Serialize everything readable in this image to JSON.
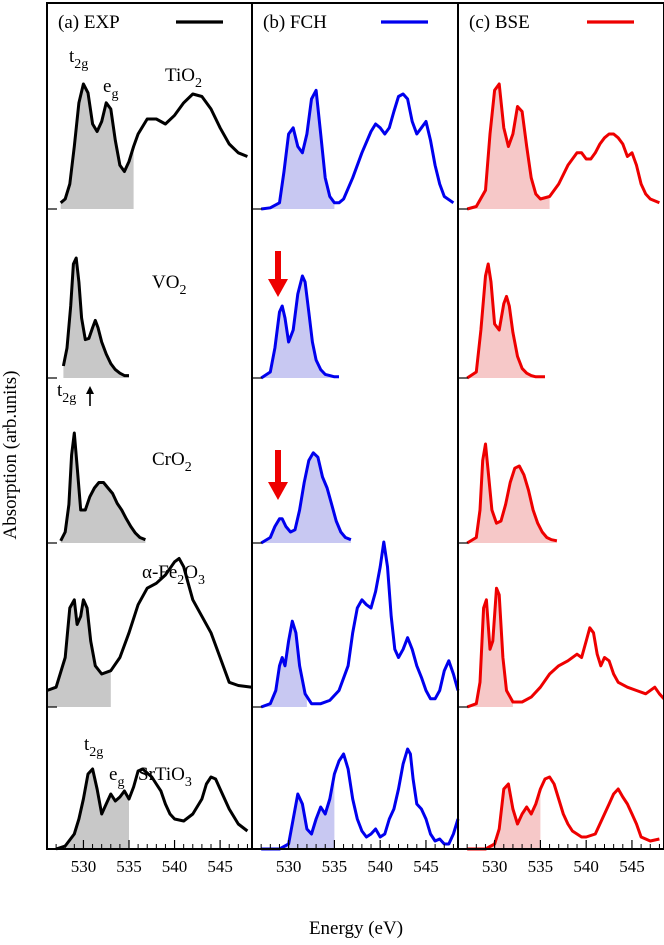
{
  "figure": {
    "ylabel": "Absorption (arb.units)",
    "xlabel": "Energy (eV)"
  },
  "colors": {
    "EXP": "#000000",
    "FCH": "#0000ee",
    "BSE": "#ee0000",
    "EXP_fill": "#c8c8c8",
    "FCH_fill": "#c8c8f2",
    "BSE_fill": "#f6c8c8",
    "arrow": "#ee0000"
  },
  "materials": [
    {
      "name": "TiO",
      "sub": "2",
      "tail": ""
    },
    {
      "name": "VO",
      "sub": "2",
      "tail": ""
    },
    {
      "name": "CrO",
      "sub": "2",
      "tail": ""
    },
    {
      "name": "α-Fe",
      "sub": "2",
      "tail": "O",
      "sub2": "3"
    },
    {
      "name": "SrTiO",
      "sub": "3",
      "tail": ""
    }
  ],
  "annotations": {
    "t2g": {
      "main": "t",
      "sub": "2g"
    },
    "eg": {
      "main": "e",
      "sub": "g"
    }
  },
  "chart_data": {
    "type": "line",
    "xlabel": "Energy (eV)",
    "ylabel": "Absorption (arb.units)",
    "xlim": [
      526.0,
      548.5
    ],
    "x_ticks": [
      530,
      535,
      540,
      545
    ],
    "x_tick_labels": [
      "530",
      "535",
      "540",
      "545"
    ],
    "y_ticks_visible": false,
    "grid": false,
    "legend_placement": "top",
    "panels": [
      {
        "id": "a",
        "label": "(a)",
        "legend": "EXP"
      },
      {
        "id": "b",
        "label": "(b)",
        "legend": "FCH"
      },
      {
        "id": "c",
        "label": "(c)",
        "legend": "BSE"
      }
    ],
    "rows": [
      {
        "material": "TiO2",
        "EXP": {
          "x": [
            527.5,
            528.0,
            528.5,
            529.0,
            529.5,
            530.0,
            530.5,
            531.0,
            531.5,
            532.0,
            532.5,
            533.0,
            533.5,
            534.0,
            534.5,
            535.0,
            535.5,
            536.0,
            537.0,
            538.0,
            539.0,
            540.0,
            541.0,
            542.0,
            543.0,
            544.0,
            545.0,
            546.0,
            547.0,
            548.0
          ],
          "y": [
            0.05,
            0.08,
            0.2,
            0.5,
            0.85,
            1.0,
            0.93,
            0.68,
            0.62,
            0.7,
            0.85,
            0.8,
            0.55,
            0.35,
            0.3,
            0.38,
            0.5,
            0.6,
            0.72,
            0.72,
            0.68,
            0.75,
            0.85,
            0.92,
            0.9,
            0.8,
            0.65,
            0.52,
            0.45,
            0.42
          ],
          "fill_to": 535.5
        },
        "FCH": {
          "x": [
            527.0,
            528.0,
            529.0,
            529.5,
            530.0,
            530.5,
            531.0,
            531.5,
            532.0,
            532.5,
            533.0,
            533.5,
            534.0,
            534.5,
            535.0,
            535.5,
            536.0,
            537.0,
            538.0,
            539.0,
            539.5,
            540.0,
            540.5,
            541.0,
            541.5,
            542.0,
            542.5,
            543.0,
            543.5,
            544.0,
            544.5,
            545.0,
            545.5,
            546.0,
            546.5,
            547.0,
            548.0
          ],
          "y": [
            0.0,
            0.01,
            0.05,
            0.3,
            0.6,
            0.65,
            0.5,
            0.45,
            0.6,
            0.88,
            0.95,
            0.6,
            0.25,
            0.1,
            0.05,
            0.05,
            0.08,
            0.25,
            0.45,
            0.62,
            0.68,
            0.65,
            0.6,
            0.65,
            0.78,
            0.9,
            0.92,
            0.88,
            0.7,
            0.6,
            0.65,
            0.7,
            0.55,
            0.35,
            0.2,
            0.1,
            0.05
          ],
          "fill_to": 535.0
        },
        "BSE": {
          "x": [
            527.0,
            528.0,
            529.0,
            529.5,
            530.0,
            530.5,
            531.0,
            531.5,
            532.0,
            532.5,
            533.0,
            533.5,
            534.0,
            534.5,
            535.0,
            536.0,
            537.0,
            538.0,
            539.0,
            539.5,
            540.0,
            540.5,
            541.0,
            541.5,
            542.0,
            542.5,
            543.0,
            543.5,
            544.0,
            544.5,
            545.0,
            545.5,
            546.0,
            546.5,
            547.0,
            548.0
          ],
          "y": [
            0.0,
            0.02,
            0.15,
            0.6,
            0.95,
            1.0,
            0.65,
            0.5,
            0.6,
            0.82,
            0.78,
            0.5,
            0.25,
            0.12,
            0.08,
            0.1,
            0.2,
            0.35,
            0.45,
            0.45,
            0.4,
            0.4,
            0.45,
            0.52,
            0.57,
            0.6,
            0.6,
            0.57,
            0.52,
            0.42,
            0.45,
            0.35,
            0.2,
            0.12,
            0.08,
            0.05
          ],
          "fill_to": 536.0
        }
      },
      {
        "material": "VO2",
        "EXP": {
          "x": [
            527.8,
            528.2,
            528.6,
            528.9,
            529.2,
            529.5,
            529.8,
            530.2,
            530.6,
            531.0,
            531.3,
            531.6,
            532.0,
            532.5,
            533.0,
            533.5,
            534.0,
            534.5,
            535.0
          ],
          "y": [
            0.1,
            0.25,
            0.6,
            0.95,
            1.0,
            0.8,
            0.5,
            0.32,
            0.33,
            0.42,
            0.48,
            0.42,
            0.3,
            0.2,
            0.12,
            0.07,
            0.04,
            0.02,
            0.02
          ],
          "fill_to": 535.0
        },
        "FCH": {
          "x": [
            527.0,
            528.0,
            528.5,
            529.0,
            529.3,
            529.6,
            530.0,
            530.5,
            531.0,
            531.5,
            531.8,
            532.2,
            532.6,
            533.0,
            533.5,
            534.0,
            534.5,
            535.0,
            535.5
          ],
          "y": [
            0.0,
            0.05,
            0.25,
            0.55,
            0.6,
            0.5,
            0.3,
            0.4,
            0.7,
            0.85,
            0.8,
            0.55,
            0.3,
            0.15,
            0.07,
            0.03,
            0.02,
            0.01,
            0.01
          ],
          "fill_to": 535.5
        },
        "BSE": {
          "x": [
            527.0,
            528.0,
            528.5,
            529.0,
            529.3,
            529.6,
            530.0,
            530.5,
            531.0,
            531.3,
            531.6,
            532.0,
            532.5,
            533.0,
            533.5,
            534.0,
            534.5,
            535.0,
            535.5
          ],
          "y": [
            0.0,
            0.05,
            0.4,
            0.85,
            0.95,
            0.8,
            0.45,
            0.4,
            0.62,
            0.68,
            0.6,
            0.38,
            0.18,
            0.08,
            0.04,
            0.02,
            0.01,
            0.01,
            0.01
          ],
          "fill_to": 535.5
        }
      },
      {
        "material": "CrO2",
        "EXP": {
          "x": [
            527.5,
            528.0,
            528.4,
            528.7,
            529.0,
            529.3,
            529.7,
            530.2,
            530.7,
            531.2,
            531.7,
            532.2,
            532.7,
            533.2,
            533.7,
            534.2,
            534.7,
            535.2,
            535.7,
            536.2,
            536.8
          ],
          "y": [
            0.02,
            0.1,
            0.35,
            0.8,
            1.0,
            0.7,
            0.3,
            0.3,
            0.42,
            0.5,
            0.55,
            0.55,
            0.5,
            0.45,
            0.36,
            0.3,
            0.22,
            0.15,
            0.09,
            0.05,
            0.03
          ],
          "fill_to": 536.8
        },
        "FCH": {
          "x": [
            527.0,
            528.0,
            528.5,
            529.0,
            529.3,
            529.7,
            530.2,
            530.7,
            531.2,
            531.7,
            532.2,
            532.7,
            533.2,
            533.7,
            534.2,
            534.7,
            535.2,
            535.7,
            536.2,
            536.8
          ],
          "y": [
            0.0,
            0.05,
            0.15,
            0.22,
            0.22,
            0.15,
            0.1,
            0.12,
            0.3,
            0.55,
            0.75,
            0.82,
            0.78,
            0.6,
            0.5,
            0.35,
            0.2,
            0.1,
            0.05,
            0.03
          ],
          "fill_to": 536.8
        },
        "BSE": {
          "x": [
            527.0,
            528.0,
            528.4,
            528.7,
            529.0,
            529.3,
            529.7,
            530.2,
            530.7,
            531.2,
            531.7,
            532.2,
            532.7,
            533.2,
            533.7,
            534.2,
            534.7,
            535.2,
            535.7,
            536.2,
            536.8
          ],
          "y": [
            0.0,
            0.05,
            0.3,
            0.75,
            0.9,
            0.65,
            0.3,
            0.18,
            0.2,
            0.35,
            0.55,
            0.68,
            0.7,
            0.62,
            0.48,
            0.3,
            0.18,
            0.1,
            0.05,
            0.03,
            0.02
          ],
          "fill_to": 536.8
        }
      },
      {
        "material": "α-Fe2O3",
        "EXP": {
          "x": [
            526.0,
            527.0,
            528.0,
            528.5,
            529.0,
            529.3,
            529.7,
            530.0,
            530.4,
            530.8,
            531.3,
            532.0,
            533.0,
            534.0,
            535.0,
            536.0,
            537.0,
            538.0,
            539.0,
            540.0,
            540.5,
            541.0,
            541.5,
            542.0,
            543.0,
            544.0,
            545.0,
            546.0,
            547.0,
            548.5
          ],
          "y": [
            0.1,
            0.12,
            0.3,
            0.6,
            0.65,
            0.5,
            0.55,
            0.65,
            0.6,
            0.4,
            0.25,
            0.2,
            0.22,
            0.3,
            0.45,
            0.62,
            0.72,
            0.75,
            0.8,
            0.88,
            0.9,
            0.85,
            0.75,
            0.65,
            0.55,
            0.45,
            0.3,
            0.15,
            0.13,
            0.12
          ],
          "fill_to": 533.0
        },
        "FCH": {
          "x": [
            527.0,
            528.0,
            528.6,
            529.0,
            529.3,
            529.6,
            530.0,
            530.4,
            530.8,
            531.2,
            531.8,
            532.5,
            533.5,
            534.5,
            535.5,
            536.5,
            537.0,
            537.5,
            538.0,
            538.5,
            539.0,
            539.5,
            540.0,
            540.4,
            540.8,
            541.2,
            541.6,
            542.0,
            542.5,
            543.0,
            543.5,
            544.0,
            544.5,
            545.0,
            545.5,
            546.0,
            546.5,
            547.0,
            547.5,
            548.0,
            548.5
          ],
          "y": [
            0.0,
            0.02,
            0.1,
            0.25,
            0.3,
            0.25,
            0.4,
            0.52,
            0.45,
            0.25,
            0.08,
            0.02,
            0.02,
            0.04,
            0.1,
            0.25,
            0.45,
            0.6,
            0.65,
            0.62,
            0.6,
            0.7,
            0.85,
            1.0,
            0.85,
            0.55,
            0.35,
            0.3,
            0.35,
            0.42,
            0.35,
            0.25,
            0.18,
            0.1,
            0.05,
            0.05,
            0.1,
            0.22,
            0.28,
            0.2,
            0.1
          ],
          "fill_to": 532.0
        },
        "BSE": {
          "x": [
            527.0,
            528.0,
            528.4,
            528.8,
            529.1,
            529.5,
            529.8,
            530.2,
            530.5,
            530.9,
            531.3,
            532.0,
            533.0,
            534.0,
            535.0,
            536.0,
            537.0,
            538.0,
            539.0,
            539.5,
            540.0,
            540.4,
            540.8,
            541.2,
            541.6,
            542.0,
            542.5,
            543.0,
            543.5,
            544.5,
            545.5,
            546.5,
            547.5,
            548.0,
            548.5
          ],
          "y": [
            0.0,
            0.02,
            0.15,
            0.6,
            0.65,
            0.35,
            0.4,
            0.72,
            0.68,
            0.3,
            0.1,
            0.03,
            0.03,
            0.06,
            0.12,
            0.2,
            0.25,
            0.28,
            0.32,
            0.3,
            0.4,
            0.48,
            0.45,
            0.32,
            0.25,
            0.3,
            0.28,
            0.2,
            0.15,
            0.12,
            0.1,
            0.08,
            0.12,
            0.08,
            0.05
          ],
          "fill_to": 532.0
        }
      },
      {
        "material": "SrTiO3",
        "EXP": {
          "x": [
            527.0,
            528.0,
            529.0,
            529.5,
            530.0,
            530.5,
            531.0,
            531.5,
            532.0,
            532.5,
            533.0,
            533.5,
            534.0,
            534.5,
            535.0,
            535.5,
            536.0,
            536.5,
            537.0,
            537.5,
            538.0,
            538.5,
            539.0,
            539.5,
            540.0,
            541.0,
            542.0,
            543.0,
            543.5,
            544.0,
            544.5,
            545.0,
            546.0,
            547.0,
            548.0
          ],
          "y": [
            0.0,
            0.03,
            0.15,
            0.3,
            0.5,
            0.75,
            0.8,
            0.6,
            0.35,
            0.45,
            0.55,
            0.48,
            0.52,
            0.58,
            0.5,
            0.62,
            0.78,
            0.8,
            0.76,
            0.72,
            0.65,
            0.58,
            0.45,
            0.35,
            0.3,
            0.28,
            0.35,
            0.5,
            0.65,
            0.72,
            0.7,
            0.6,
            0.4,
            0.25,
            0.18
          ],
          "fill_to": 535.0
        },
        "FCH": {
          "x": [
            527.0,
            529.0,
            530.0,
            530.5,
            531.0,
            531.5,
            532.0,
            532.5,
            533.0,
            533.5,
            534.0,
            534.5,
            535.0,
            535.5,
            536.0,
            536.5,
            537.0,
            537.5,
            538.0,
            538.5,
            539.0,
            539.5,
            540.0,
            540.5,
            541.0,
            541.5,
            542.0,
            542.5,
            543.0,
            543.3,
            543.6,
            544.0,
            544.5,
            545.0,
            545.5,
            546.0,
            546.5,
            547.0,
            547.5,
            548.0,
            548.5
          ],
          "y": [
            0.0,
            0.0,
            0.05,
            0.3,
            0.55,
            0.45,
            0.2,
            0.15,
            0.3,
            0.42,
            0.35,
            0.5,
            0.75,
            0.88,
            0.95,
            0.8,
            0.5,
            0.3,
            0.18,
            0.12,
            0.15,
            0.2,
            0.12,
            0.15,
            0.3,
            0.4,
            0.6,
            0.85,
            1.0,
            0.95,
            0.7,
            0.45,
            0.4,
            0.3,
            0.15,
            0.08,
            0.1,
            0.05,
            0.05,
            0.15,
            0.3
          ],
          "fill_to": 535.0
        },
        "BSE": {
          "x": [
            527.0,
            529.0,
            530.0,
            530.5,
            531.0,
            531.5,
            532.0,
            532.5,
            533.0,
            533.5,
            534.0,
            534.5,
            535.0,
            535.5,
            536.0,
            536.5,
            537.0,
            537.5,
            538.0,
            538.5,
            539.0,
            539.5,
            540.0,
            541.0,
            541.5,
            542.0,
            542.5,
            543.0,
            543.5,
            544.0,
            544.5,
            545.0,
            545.5,
            546.0,
            547.0,
            548.0
          ],
          "y": [
            0.0,
            0.0,
            0.05,
            0.2,
            0.6,
            0.65,
            0.4,
            0.25,
            0.35,
            0.42,
            0.35,
            0.45,
            0.6,
            0.7,
            0.72,
            0.65,
            0.5,
            0.35,
            0.25,
            0.18,
            0.15,
            0.12,
            0.12,
            0.15,
            0.25,
            0.35,
            0.45,
            0.55,
            0.6,
            0.52,
            0.45,
            0.35,
            0.25,
            0.12,
            0.08,
            0.1
          ],
          "fill_to": 535.0
        }
      }
    ]
  }
}
